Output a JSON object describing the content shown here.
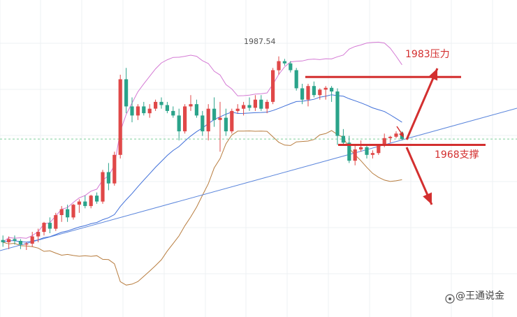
{
  "chart_data": {
    "type": "candlestick",
    "title": "",
    "xlabel": "",
    "ylabel": "",
    "ylim": [
      1930,
      2000
    ],
    "grid": true,
    "peak_label": "1987.54",
    "resistance": {
      "value": 1983,
      "label": "1983压力"
    },
    "support": {
      "value": 1968,
      "label": "1968支撑"
    },
    "colors": {
      "up": "#e04848",
      "down": "#2aa38a",
      "upper_band": "#d47ad4",
      "middle_band": "#3f6fd9",
      "lower_band": "#b87d3f",
      "trendline": "#5b86dc",
      "annotation": "#d32f2f",
      "current_price_line": "#7dcf9b"
    },
    "candles": [
      [
        1947.0,
        1948.0,
        1945.5,
        1946.5
      ],
      [
        1946.5,
        1947.8,
        1945.0,
        1947.2
      ],
      [
        1947.2,
        1948.0,
        1946.0,
        1946.8
      ],
      [
        1946.8,
        1947.2,
        1945.0,
        1946.0
      ],
      [
        1946.0,
        1946.5,
        1944.8,
        1946.2
      ],
      [
        1946.2,
        1948.8,
        1945.5,
        1947.8
      ],
      [
        1947.8,
        1949.5,
        1946.5,
        1948.8
      ],
      [
        1948.8,
        1951.0,
        1948.0,
        1950.8
      ],
      [
        1950.8,
        1952.0,
        1948.5,
        1949.5
      ],
      [
        1949.5,
        1953.0,
        1949.0,
        1952.5
      ],
      [
        1952.5,
        1954.5,
        1951.0,
        1953.8
      ],
      [
        1953.8,
        1954.8,
        1951.0,
        1952.0
      ],
      [
        1952.0,
        1955.0,
        1951.5,
        1954.8
      ],
      [
        1954.8,
        1956.0,
        1953.0,
        1955.5
      ],
      [
        1955.5,
        1956.8,
        1954.0,
        1954.5
      ],
      [
        1954.5,
        1957.0,
        1954.0,
        1956.8
      ],
      [
        1956.8,
        1957.5,
        1955.0,
        1955.5
      ],
      [
        1955.5,
        1962.5,
        1955.0,
        1962.0
      ],
      [
        1962.0,
        1964.0,
        1958.0,
        1959.5
      ],
      [
        1959.5,
        1966.5,
        1959.0,
        1965.8
      ],
      [
        1965.8,
        1983.5,
        1965.0,
        1982.5
      ],
      [
        1982.5,
        1985.0,
        1975.0,
        1976.5
      ],
      [
        1976.5,
        1978.5,
        1973.0,
        1974.5
      ],
      [
        1974.5,
        1977.0,
        1973.5,
        1976.5
      ],
      [
        1976.5,
        1977.5,
        1974.5,
        1975.0
      ],
      [
        1975.0,
        1977.0,
        1974.0,
        1976.0
      ],
      [
        1976.0,
        1978.0,
        1975.5,
        1977.5
      ],
      [
        1977.5,
        1978.5,
        1976.0,
        1976.8
      ],
      [
        1976.8,
        1977.5,
        1975.0,
        1975.5
      ],
      [
        1975.5,
        1976.5,
        1974.0,
        1974.5
      ],
      [
        1974.5,
        1976.0,
        1969.0,
        1971.0
      ],
      [
        1971.0,
        1977.0,
        1970.5,
        1976.5
      ],
      [
        1976.5,
        1979.0,
        1975.5,
        1977.0
      ],
      [
        1977.0,
        1978.0,
        1974.0,
        1974.5
      ],
      [
        1974.5,
        1975.5,
        1970.0,
        1971.0
      ],
      [
        1971.0,
        1977.0,
        1969.0,
        1976.0
      ],
      [
        1976.0,
        1978.5,
        1972.0,
        1973.5
      ],
      [
        1973.5,
        1977.5,
        1966.5,
        1974.0
      ],
      [
        1974.0,
        1976.0,
        1970.0,
        1971.0
      ],
      [
        1971.0,
        1976.0,
        1970.5,
        1975.5
      ],
      [
        1975.5,
        1977.0,
        1975.0,
        1976.0
      ],
      [
        1976.0,
        1977.5,
        1974.5,
        1976.8
      ],
      [
        1976.8,
        1978.5,
        1975.5,
        1976.2
      ],
      [
        1976.2,
        1979.0,
        1975.5,
        1978.0
      ],
      [
        1978.0,
        1979.0,
        1975.5,
        1976.0
      ],
      [
        1976.0,
        1978.0,
        1975.0,
        1977.5
      ],
      [
        1977.5,
        1985.0,
        1977.0,
        1984.5
      ],
      [
        1984.5,
        1987.54,
        1983.5,
        1986.5
      ],
      [
        1986.5,
        1987.0,
        1985.5,
        1986.0
      ],
      [
        1986.0,
        1986.5,
        1984.0,
        1984.5
      ],
      [
        1984.5,
        1985.0,
        1980.0,
        1980.5
      ],
      [
        1980.5,
        1981.5,
        1977.0,
        1978.0
      ],
      [
        1978.0,
        1981.5,
        1976.5,
        1981.0
      ],
      [
        1981.0,
        1982.0,
        1978.5,
        1979.0
      ],
      [
        1979.0,
        1980.5,
        1978.0,
        1980.2
      ],
      [
        1980.2,
        1981.0,
        1978.0,
        1980.6
      ],
      [
        1980.6,
        1981.0,
        1977.5,
        1979.8
      ],
      [
        1979.8,
        1980.5,
        1968.0,
        1970.0
      ],
      [
        1970.0,
        1971.5,
        1968.0,
        1968.5
      ],
      [
        1968.5,
        1970.0,
        1964.0,
        1964.5
      ],
      [
        1964.5,
        1968.0,
        1963.5,
        1967.0
      ],
      [
        1967.0,
        1969.0,
        1966.5,
        1967.5
      ],
      [
        1967.5,
        1968.0,
        1965.0,
        1965.8
      ],
      [
        1965.8,
        1966.8,
        1965.0,
        1966.2
      ],
      [
        1966.2,
        1968.0,
        1965.8,
        1967.8
      ],
      [
        1967.8,
        1970.5,
        1967.5,
        1969.5
      ],
      [
        1969.5,
        1970.0,
        1968.5,
        1969.8
      ],
      [
        1969.8,
        1971.0,
        1969.5,
        1970.5
      ],
      [
        1970.5,
        1971.0,
        1969.0,
        1969.3
      ]
    ],
    "current_price": 1969.3
  },
  "watermark": {
    "label": "@王通说金"
  }
}
